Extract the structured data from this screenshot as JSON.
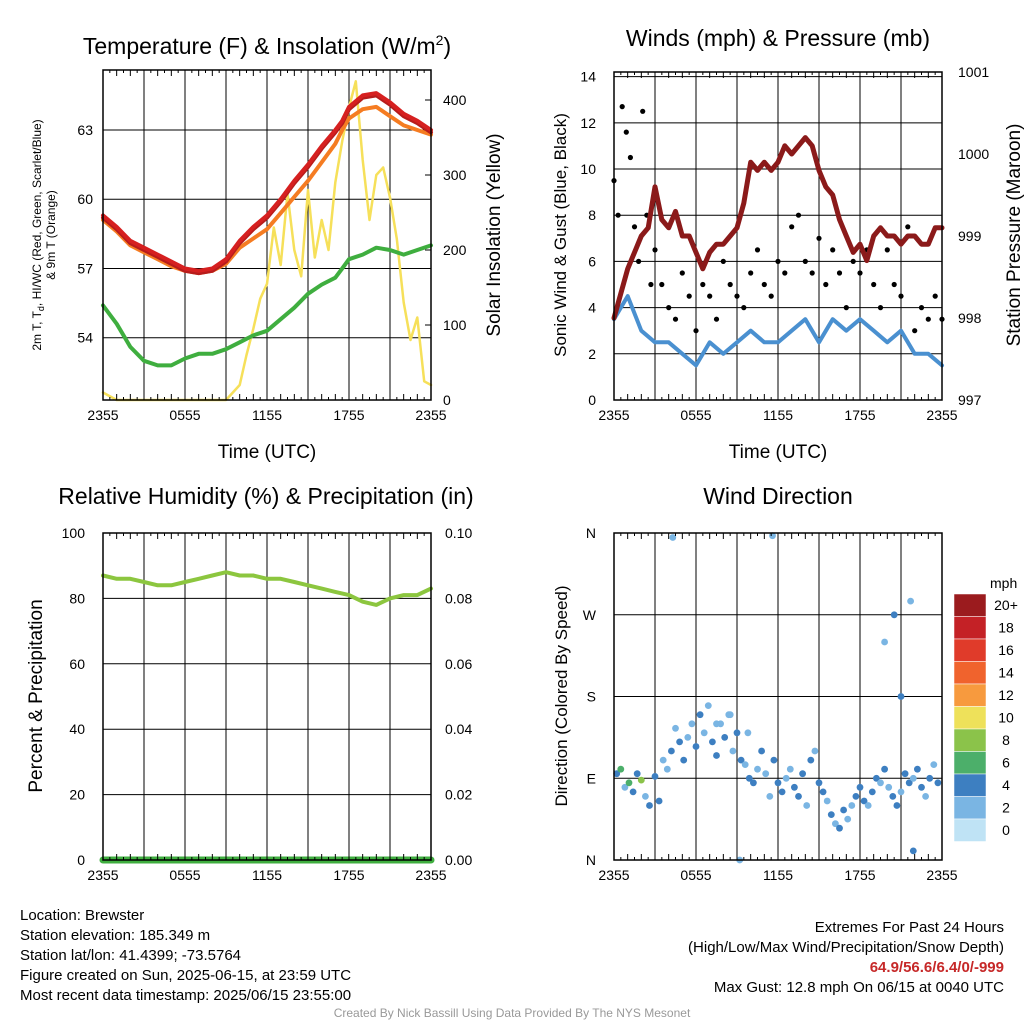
{
  "time_ticks": [
    "2355",
    "0555",
    "1155",
    "1755",
    "2355"
  ],
  "colors": {
    "temp": "#d62020",
    "heat_index": "#b71c1c",
    "nine_m": "#f57c22",
    "dewpoint": "#3fae3f",
    "insolation": "#f6e05a",
    "wind": "#4a90d0",
    "gust": "#000000",
    "pressure": "#8b1a1a",
    "humidity": "#8cc63f",
    "precip": "#3fae3f"
  },
  "chart_data": [
    {
      "type": "line",
      "title": "Temperature (F) & Insolation (W/m",
      "title_sup": "2",
      "title_close": ")",
      "xlabel": "Time (UTC)",
      "ylabel_line1": "2m T, T",
      "ylabel_sub": "d",
      "ylabel_line1_rest": ", HI/WC (Red, Green, Scarlet/Blue)",
      "ylabel_line2": "& 9m T (Orange)",
      "y2label": "Solar Insolation (Yellow)",
      "ylim": [
        51.3,
        65.6
      ],
      "y_ticks": [
        54,
        57,
        60,
        63
      ],
      "y2lim": [
        0,
        440
      ],
      "y2_ticks": [
        0,
        100,
        200,
        300,
        400
      ],
      "x_hours": [
        0,
        1,
        2,
        3,
        4,
        5,
        6,
        7,
        8,
        9,
        10,
        11,
        12,
        13,
        14,
        15,
        16,
        17,
        17.5,
        18,
        19,
        20,
        21,
        22,
        23,
        24
      ],
      "series": [
        {
          "name": "2m T",
          "color_key": "temp",
          "values": [
            59.3,
            58.8,
            58.2,
            57.9,
            57.6,
            57.3,
            57.0,
            56.9,
            57.0,
            57.4,
            58.2,
            58.8,
            59.3,
            60.0,
            60.8,
            61.5,
            62.3,
            63.0,
            63.4,
            64.0,
            64.5,
            64.6,
            64.2,
            63.7,
            63.4,
            63.0
          ]
        },
        {
          "name": "HI/WC",
          "color_key": "heat_index",
          "values": [
            59.2,
            58.7,
            58.1,
            57.8,
            57.5,
            57.2,
            56.9,
            56.8,
            56.9,
            57.3,
            58.1,
            58.7,
            59.2,
            59.9,
            60.7,
            61.4,
            62.2,
            62.9,
            63.3,
            63.9,
            64.4,
            64.5,
            64.1,
            63.6,
            63.3,
            62.9
          ]
        },
        {
          "name": "9m T",
          "color_key": "nine_m",
          "values": [
            59.1,
            58.6,
            58.0,
            57.7,
            57.4,
            57.1,
            56.9,
            56.8,
            56.9,
            57.2,
            57.9,
            58.3,
            58.7,
            59.4,
            60.1,
            60.8,
            61.6,
            62.4,
            63.0,
            63.5,
            63.9,
            64.0,
            63.6,
            63.2,
            63.0,
            62.8
          ]
        },
        {
          "name": "Td",
          "color_key": "dewpoint",
          "values": [
            55.4,
            54.6,
            53.6,
            53.0,
            52.8,
            52.8,
            53.1,
            53.3,
            53.3,
            53.5,
            53.8,
            54.1,
            54.3,
            54.8,
            55.3,
            55.9,
            56.3,
            56.6,
            57.0,
            57.4,
            57.6,
            57.9,
            57.8,
            57.6,
            57.8,
            58.0
          ]
        }
      ],
      "insolation": {
        "x_hours": [
          0,
          1,
          2,
          3,
          4,
          5,
          6,
          7,
          8,
          9,
          10,
          10.5,
          11,
          11.5,
          12,
          12.5,
          13,
          13.5,
          14,
          14.5,
          15,
          15.5,
          16,
          16.5,
          17,
          17.5,
          18,
          18.5,
          19,
          19.5,
          20,
          20.5,
          21,
          21.5,
          22,
          22.5,
          23,
          23.5,
          24
        ],
        "values": [
          10,
          0,
          0,
          0,
          0,
          0,
          0,
          0,
          0,
          0,
          20,
          60,
          95,
          135,
          155,
          230,
          180,
          275,
          200,
          165,
          280,
          190,
          240,
          200,
          290,
          345,
          390,
          425,
          320,
          240,
          300,
          310,
          270,
          215,
          130,
          80,
          110,
          25,
          20
        ]
      }
    },
    {
      "type": "scatter",
      "title": "Winds (mph) & Pressure (mb)",
      "xlabel": "Time (UTC)",
      "ylabel": "Sonic Wind & Gust (Blue, Black)",
      "y2label": "Station Pressure (Maroon)",
      "ylim": [
        0,
        14.2
      ],
      "y_ticks": [
        0,
        2,
        4,
        6,
        8,
        10,
        12,
        14
      ],
      "y2lim": [
        997,
        1001
      ],
      "y2_ticks": [
        997,
        998,
        999,
        1000,
        1001
      ],
      "wind": {
        "x_hours": [
          0,
          1,
          2,
          3,
          4,
          5,
          6,
          7,
          8,
          9,
          10,
          11,
          12,
          13,
          14,
          15,
          16,
          17,
          18,
          19,
          20,
          21,
          22,
          23,
          24
        ],
        "values": [
          3.5,
          4.5,
          3.0,
          2.5,
          2.5,
          2.0,
          1.5,
          2.5,
          2.0,
          2.5,
          3.0,
          2.5,
          2.5,
          3.0,
          3.5,
          2.5,
          3.5,
          3.0,
          3.5,
          3.0,
          2.5,
          3.0,
          2.0,
          2.0,
          1.5
        ]
      },
      "gust": {
        "x_hours": [
          0,
          0.3,
          0.6,
          0.9,
          1.2,
          1.5,
          1.8,
          2.1,
          2.4,
          2.7,
          3.0,
          3.5,
          4.0,
          4.5,
          5.0,
          5.5,
          6.0,
          6.5,
          7.0,
          7.5,
          8.0,
          8.5,
          9.0,
          9.5,
          10.0,
          10.5,
          11.0,
          11.5,
          12.0,
          12.5,
          13.0,
          13.5,
          14.0,
          14.5,
          15.0,
          15.5,
          16.0,
          16.5,
          17.0,
          17.5,
          18.0,
          18.5,
          19.0,
          19.5,
          20.0,
          20.5,
          21.0,
          21.5,
          22.0,
          22.5,
          23.0,
          23.5,
          24.0
        ],
        "values": [
          9.5,
          8.0,
          12.7,
          11.6,
          10.5,
          7.5,
          6.0,
          12.5,
          8.0,
          5.0,
          6.5,
          5.0,
          4.0,
          3.5,
          5.5,
          4.5,
          3.0,
          5.0,
          4.5,
          3.5,
          6.0,
          5.0,
          4.5,
          4.0,
          5.5,
          6.5,
          5.0,
          4.5,
          6.0,
          5.5,
          7.5,
          8.0,
          6.0,
          5.5,
          7.0,
          5.0,
          6.5,
          5.5,
          4.0,
          6.0,
          5.5,
          6.5,
          5.0,
          4.0,
          6.5,
          5.0,
          4.5,
          7.5,
          3.0,
          4.0,
          3.5,
          4.5,
          3.5
        ]
      },
      "pressure": {
        "x_hours": [
          0,
          1,
          1.5,
          2,
          2.5,
          3,
          3.5,
          4,
          4.5,
          5,
          5.5,
          6,
          6.5,
          7,
          7.5,
          8,
          8.5,
          9,
          9.5,
          10,
          10.5,
          11,
          11.5,
          12,
          12.5,
          13,
          13.5,
          14,
          14.5,
          15,
          15.5,
          16,
          16.5,
          17,
          17.5,
          18,
          18.5,
          19,
          19.5,
          20,
          20.5,
          21,
          21.5,
          22,
          22.5,
          23,
          23.5,
          24
        ],
        "values": [
          998.0,
          998.6,
          998.8,
          999.0,
          999.1,
          999.6,
          999.2,
          999.1,
          999.3,
          999.0,
          999.0,
          998.8,
          998.6,
          998.8,
          998.9,
          998.9,
          999.0,
          999.1,
          999.4,
          999.9,
          999.8,
          999.9,
          999.8,
          999.9,
          1000.1,
          1000.0,
          1000.1,
          1000.2,
          1000.1,
          999.8,
          999.6,
          999.5,
          999.2,
          999.0,
          998.8,
          998.9,
          998.7,
          999.0,
          999.1,
          999.0,
          999.0,
          998.9,
          999.0,
          999.0,
          998.9,
          998.9,
          999.1,
          999.1
        ]
      }
    },
    {
      "type": "line",
      "title": "Relative Humidity (%) & Precipitation (in)",
      "xlabel": "",
      "ylabel": "Percent & Precipitation",
      "ylim": [
        0,
        100
      ],
      "y_ticks": [
        0,
        20,
        40,
        60,
        80,
        100
      ],
      "y2lim": [
        0,
        0.1
      ],
      "y2_ticks": [
        "0.00",
        "0.02",
        "0.04",
        "0.06",
        "0.08",
        "0.10"
      ],
      "humidity": {
        "x_hours": [
          0,
          1,
          2,
          3,
          4,
          5,
          6,
          7,
          8,
          9,
          10,
          11,
          12,
          13,
          14,
          15,
          16,
          17,
          18,
          19,
          20,
          21,
          22,
          23,
          24
        ],
        "values": [
          87,
          86,
          86,
          85,
          84,
          84,
          85,
          86,
          87,
          88,
          87,
          87,
          86,
          86,
          85,
          84,
          83,
          82,
          81,
          79,
          78,
          80,
          81,
          81,
          83
        ]
      },
      "precip": {
        "x_hours": [
          0,
          24
        ],
        "values": [
          0,
          0
        ]
      }
    },
    {
      "type": "scatter",
      "title": "Wind Direction",
      "ylabel": "Direction (Colored By Speed)",
      "y_ticks": [
        "N",
        "E",
        "S",
        "W",
        "N"
      ],
      "legend_title": "mph",
      "legend_labels": [
        "20+",
        "18",
        "16",
        "14",
        "12",
        "10",
        "8",
        "6",
        "4",
        "2",
        "0"
      ],
      "legend_colors": [
        "#9b1b1e",
        "#c42126",
        "#e03b2a",
        "#f0632d",
        "#f79a3e",
        "#eee15a",
        "#8bc34a",
        "#4caf6a",
        "#3d7fc1",
        "#7ab5e3",
        "#bfe3f5"
      ],
      "points": {
        "x_hours": [
          0.2,
          0.5,
          0.8,
          1.1,
          1.4,
          1.7,
          2.0,
          2.3,
          2.6,
          3.0,
          3.3,
          3.6,
          3.9,
          4.2,
          4.5,
          4.8,
          5.1,
          5.4,
          5.7,
          6.0,
          6.3,
          6.6,
          6.9,
          7.2,
          7.5,
          7.8,
          8.1,
          8.4,
          8.7,
          9.0,
          9.3,
          9.6,
          9.9,
          10.2,
          10.5,
          10.8,
          11.1,
          11.4,
          11.7,
          12.0,
          12.3,
          12.6,
          12.9,
          13.2,
          13.5,
          13.8,
          14.1,
          14.4,
          14.7,
          15.0,
          15.3,
          15.6,
          15.9,
          16.2,
          16.5,
          16.8,
          17.1,
          17.4,
          17.7,
          18.0,
          18.3,
          18.6,
          18.9,
          19.2,
          19.5,
          19.8,
          20.1,
          20.4,
          20.7,
          21.0,
          21.3,
          21.6,
          21.9,
          22.2,
          22.5,
          22.8,
          23.1,
          23.4,
          23.7,
          4.3,
          9.2,
          11.6,
          21.7,
          21.9,
          20.5,
          19.8,
          21.0,
          7.5,
          8.5,
          9.8
        ],
        "direction_deg": [
          95,
          100,
          80,
          85,
          75,
          95,
          88,
          70,
          60,
          92,
          65,
          110,
          100,
          120,
          145,
          130,
          110,
          135,
          150,
          125,
          160,
          140,
          170,
          130,
          115,
          150,
          135,
          160,
          120,
          140,
          110,
          105,
          90,
          85,
          100,
          120,
          95,
          70,
          110,
          85,
          75,
          90,
          100,
          80,
          70,
          95,
          60,
          110,
          120,
          85,
          75,
          65,
          50,
          40,
          35,
          55,
          45,
          60,
          70,
          80,
          65,
          60,
          75,
          90,
          85,
          100,
          80,
          70,
          60,
          75,
          95,
          85,
          90,
          100,
          80,
          70,
          90,
          105,
          85,
          355,
          0,
          357,
          285,
          10,
          270,
          240,
          180,
          150,
          160,
          140
        ],
        "speed_mph": [
          4,
          6,
          2,
          5,
          3,
          4,
          8,
          2,
          3,
          4,
          3,
          1,
          2,
          3,
          2,
          4,
          3,
          1,
          2,
          3,
          4,
          2,
          1,
          3,
          4,
          2,
          3,
          1,
          2,
          4,
          3,
          2,
          3,
          4,
          2,
          3,
          1,
          2,
          3,
          4,
          3,
          2,
          2,
          3,
          4,
          3,
          2,
          3,
          2,
          4,
          3,
          2,
          3,
          2,
          4,
          3,
          2,
          2,
          3,
          4,
          3,
          2,
          3,
          4,
          2,
          3,
          2,
          3,
          4,
          2,
          3,
          3,
          2,
          3,
          4,
          2,
          3,
          2,
          3,
          1,
          2,
          1,
          2,
          3,
          3,
          2,
          3,
          1,
          1,
          2
        ]
      }
    }
  ],
  "info": {
    "location": "Location: Brewster",
    "elevation": "Station elevation: 185.349 m",
    "latlon": "Station lat/lon: 41.4399; -73.5764",
    "created": "Figure created on Sun, 2025-06-15, at 23:59 UTC",
    "recent": "Most recent data timestamp: 2025/06/15 23:55:00"
  },
  "extremes": {
    "title": "Extremes For Past 24 Hours",
    "subtitle": "(High/Low/Max Wind/Precipitation/Snow Depth)",
    "values": "64.9/56.6/6.4/0/-999",
    "max_gust": "Max Gust: 12.8 mph On 06/15 at 0040 UTC"
  },
  "credit": "Created By Nick Bassill Using Data Provided By The NYS Mesonet"
}
